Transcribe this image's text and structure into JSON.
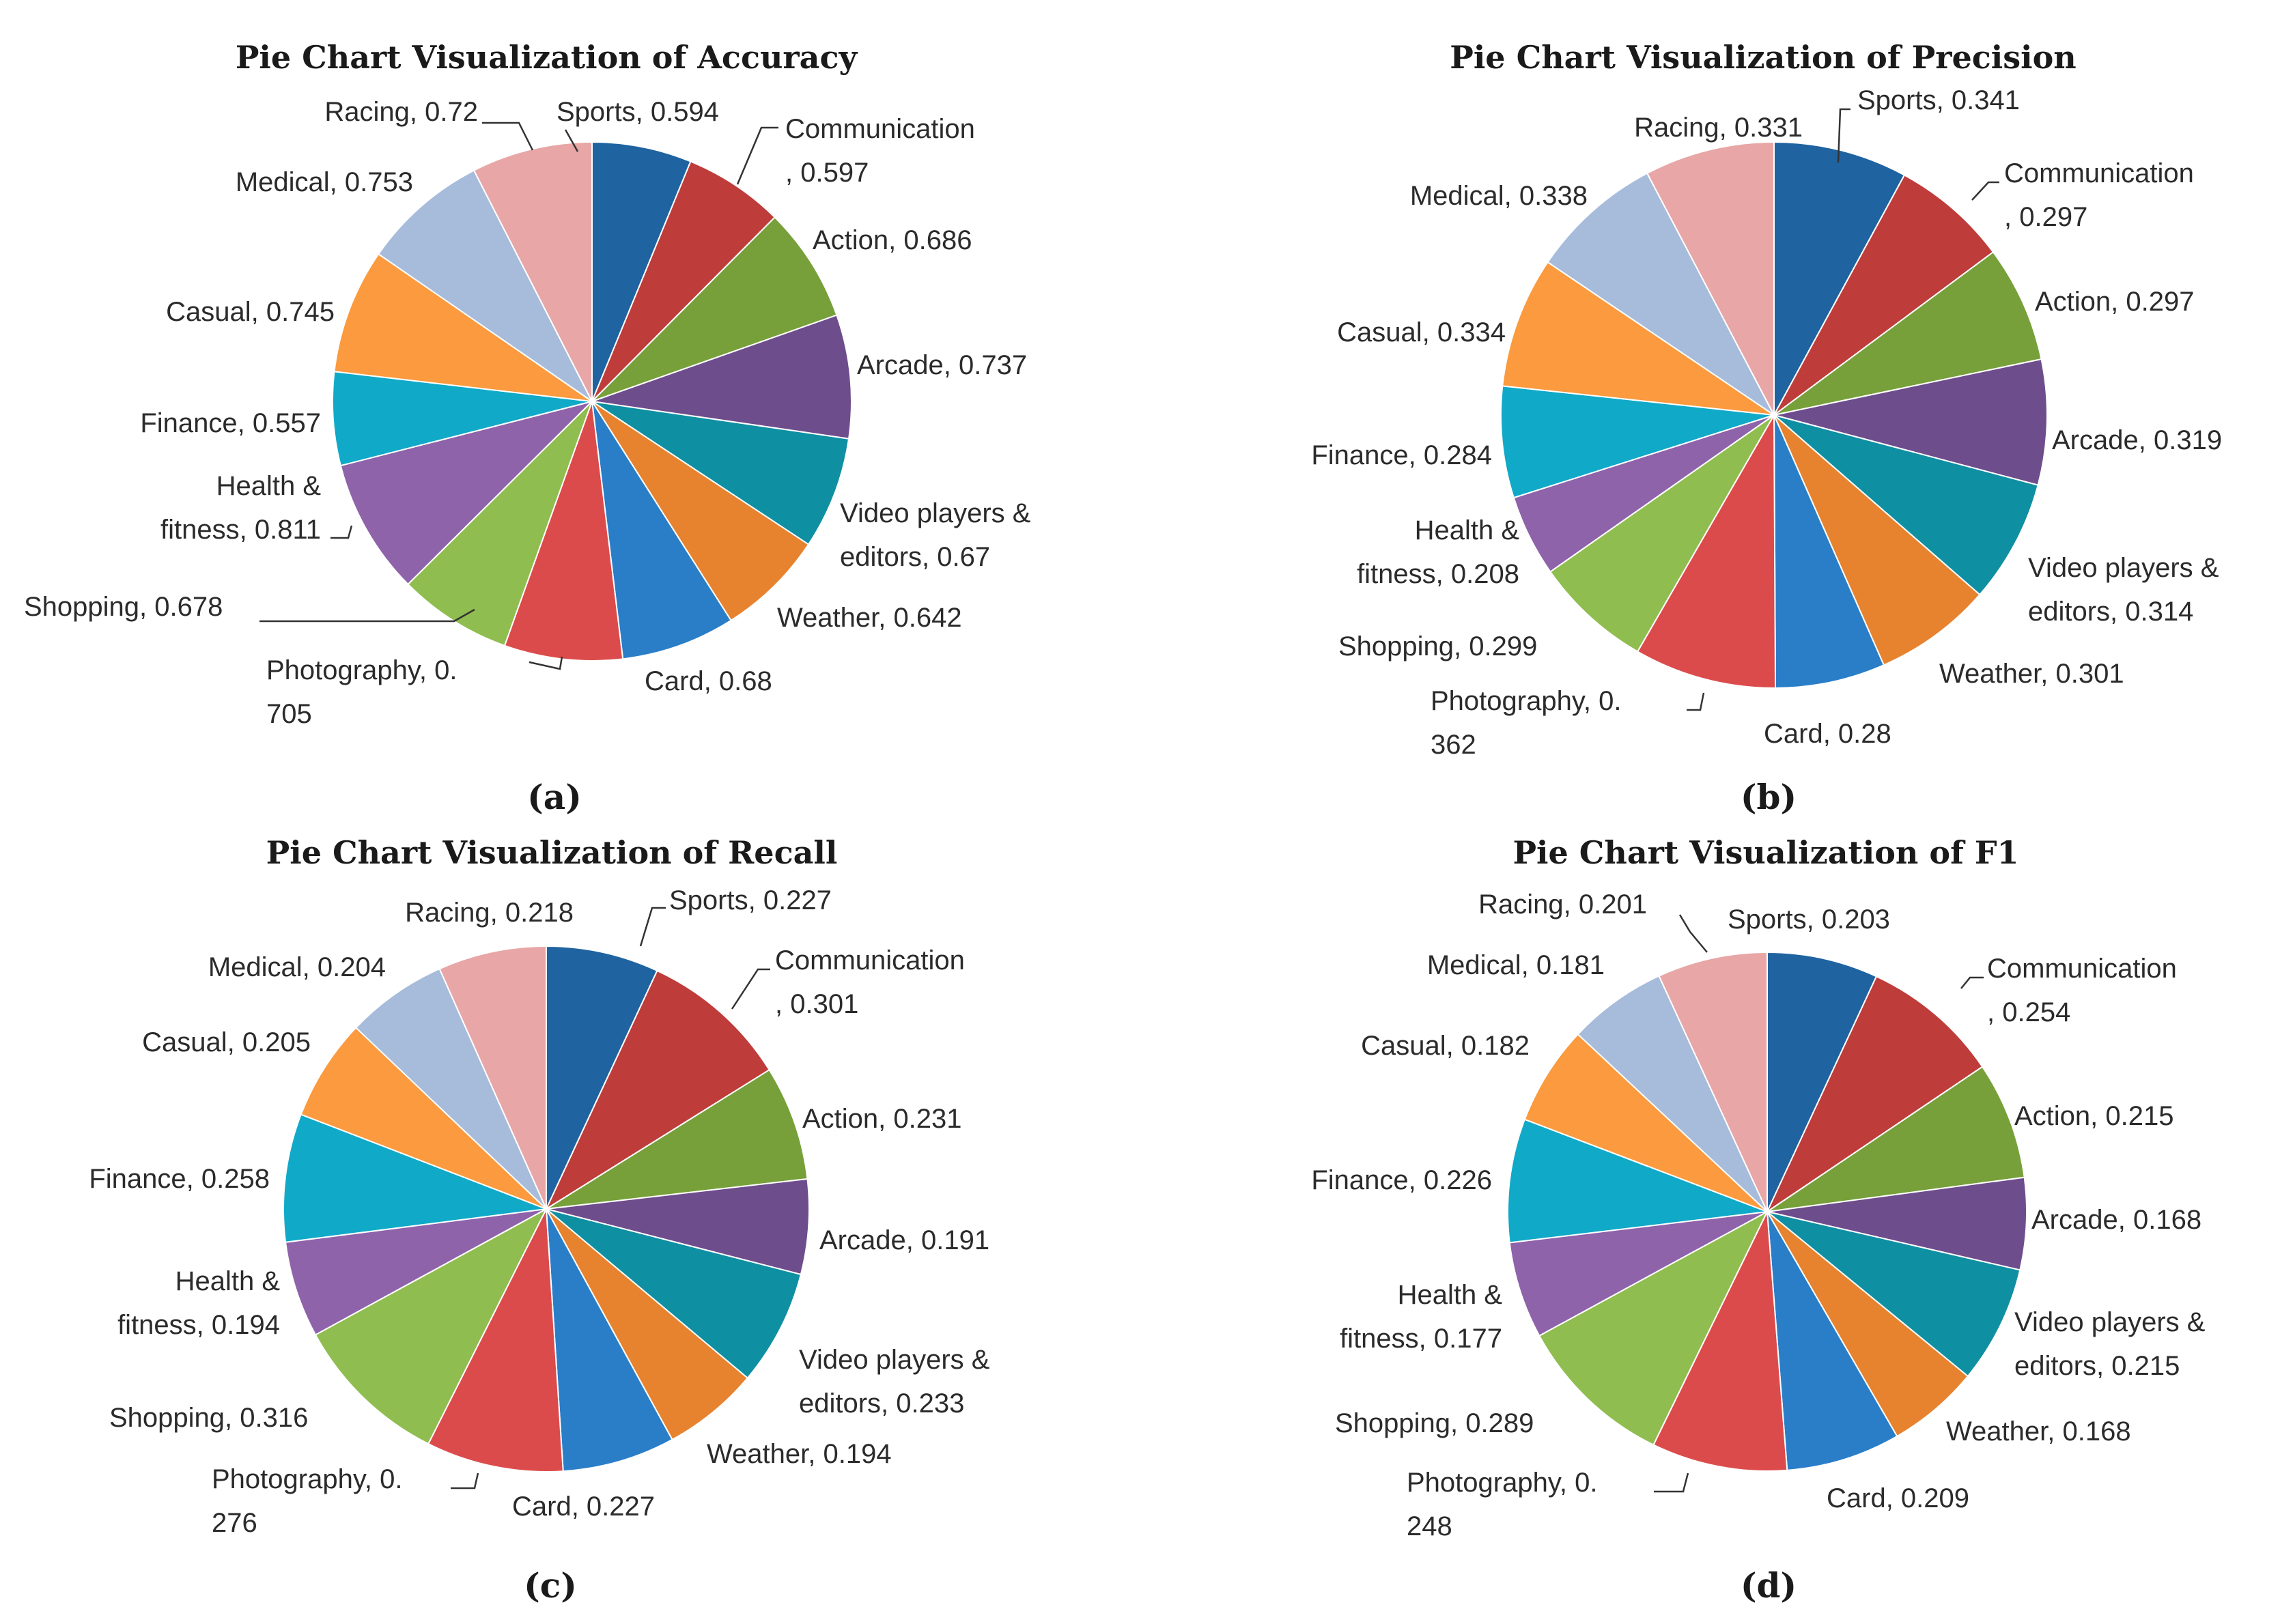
{
  "colors": [
    "#1f63a0",
    "#be3c3a",
    "#77a03a",
    "#6e4d8c",
    "#0f8fa2",
    "#e7822f",
    "#2a7ec8",
    "#dc4b4b",
    "#8fbd4f",
    "#8e63aa",
    "#11a9c8",
    "#fb9a3e",
    "#a7bbdb",
    "#e8a6a6"
  ],
  "chart_data": [
    {
      "type": "pie",
      "title": "Pie Chart Visualization of Accuracy",
      "panel_label": "(a)",
      "categories": [
        "Sports",
        "Communication",
        "Action",
        "Arcade",
        "Video players & editors",
        "Weather",
        "Card",
        "Photography",
        "Shopping",
        "Health & fitness",
        "Finance",
        "Casual",
        "Medical",
        "Racing"
      ],
      "values": [
        0.594,
        0.597,
        0.686,
        0.737,
        0.67,
        0.642,
        0.68,
        0.705,
        0.678,
        0.811,
        0.557,
        0.745,
        0.753,
        0.72
      ],
      "labels": [
        [
          "Sports, 0.594"
        ],
        [
          "Communication",
          ", 0.597"
        ],
        [
          "Action, 0.686"
        ],
        [
          "Arcade, 0.737"
        ],
        [
          "Video players &",
          "editors, 0.67"
        ],
        [
          "Weather, 0.642"
        ],
        [
          "Card, 0.68"
        ],
        [
          "Photography, 0.",
          "705"
        ],
        [
          "Shopping, 0.678"
        ],
        [
          "Health &",
          "fitness, 0.811"
        ],
        [
          "Finance, 0.557"
        ],
        [
          "Casual, 0.745"
        ],
        [
          "Medical, 0.753"
        ],
        [
          "Racing, 0.72"
        ]
      ]
    },
    {
      "type": "pie",
      "title": "Pie Chart Visualization of Precision",
      "panel_label": "(b)",
      "categories": [
        "Sports",
        "Communication",
        "Action",
        "Arcade",
        "Video players & editors",
        "Weather",
        "Card",
        "Photography",
        "Shopping",
        "Health & fitness",
        "Finance",
        "Casual",
        "Medical",
        "Racing"
      ],
      "values": [
        0.341,
        0.297,
        0.297,
        0.319,
        0.314,
        0.301,
        0.28,
        0.362,
        0.299,
        0.208,
        0.284,
        0.334,
        0.338,
        0.331
      ],
      "labels": [
        [
          "Sports, 0.341"
        ],
        [
          "Communication",
          ", 0.297"
        ],
        [
          "Action, 0.297"
        ],
        [
          "Arcade, 0.319"
        ],
        [
          "Video players &",
          "editors, 0.314"
        ],
        [
          "Weather, 0.301"
        ],
        [
          "Card, 0.28"
        ],
        [
          "Photography, 0.",
          "362"
        ],
        [
          "Shopping, 0.299"
        ],
        [
          "Health &",
          "fitness, 0.208"
        ],
        [
          "Finance, 0.284"
        ],
        [
          "Casual, 0.334"
        ],
        [
          "Medical, 0.338"
        ],
        [
          "Racing, 0.331"
        ]
      ]
    },
    {
      "type": "pie",
      "title": "Pie Chart Visualization of Recall",
      "panel_label": "(c)",
      "categories": [
        "Sports",
        "Communication",
        "Action",
        "Arcade",
        "Video players & editors",
        "Weather",
        "Card",
        "Photography",
        "Shopping",
        "Health & fitness",
        "Finance",
        "Casual",
        "Medical",
        "Racing"
      ],
      "values": [
        0.227,
        0.301,
        0.231,
        0.191,
        0.233,
        0.194,
        0.227,
        0.276,
        0.316,
        0.194,
        0.258,
        0.205,
        0.204,
        0.218
      ],
      "labels": [
        [
          "Sports, 0.227"
        ],
        [
          "Communication",
          ", 0.301"
        ],
        [
          "Action, 0.231"
        ],
        [
          "Arcade, 0.191"
        ],
        [
          "Video players &",
          "editors, 0.233"
        ],
        [
          "Weather, 0.194"
        ],
        [
          "Card, 0.227"
        ],
        [
          "Photography, 0.",
          "276"
        ],
        [
          "Shopping, 0.316"
        ],
        [
          "Health &",
          "fitness, 0.194"
        ],
        [
          "Finance, 0.258"
        ],
        [
          "Casual, 0.205"
        ],
        [
          "Medical, 0.204"
        ],
        [
          "Racing, 0.218"
        ]
      ]
    },
    {
      "type": "pie",
      "title": "Pie Chart Visualization of F1",
      "panel_label": "(d)",
      "categories": [
        "Sports",
        "Communication",
        "Action",
        "Arcade",
        "Video players & editors",
        "Weather",
        "Card",
        "Photography",
        "Shopping",
        "Health & fitness",
        "Finance",
        "Casual",
        "Medical",
        "Racing"
      ],
      "values": [
        0.203,
        0.254,
        0.215,
        0.168,
        0.215,
        0.168,
        0.209,
        0.248,
        0.289,
        0.177,
        0.226,
        0.182,
        0.181,
        0.201
      ],
      "labels": [
        [
          "Sports, 0.203"
        ],
        [
          "Communication",
          ", 0.254"
        ],
        [
          "Action, 0.215"
        ],
        [
          "Arcade, 0.168"
        ],
        [
          "Video players &",
          "editors, 0.215"
        ],
        [
          "Weather, 0.168"
        ],
        [
          "Card, 0.209"
        ],
        [
          "Photography, 0.",
          "248"
        ],
        [
          "Shopping, 0.289"
        ],
        [
          "Health &",
          "fitness, 0.177"
        ],
        [
          "Finance, 0.226"
        ],
        [
          "Casual, 0.182"
        ],
        [
          "Medical, 0.181"
        ],
        [
          "Racing, 0.201"
        ]
      ]
    }
  ]
}
